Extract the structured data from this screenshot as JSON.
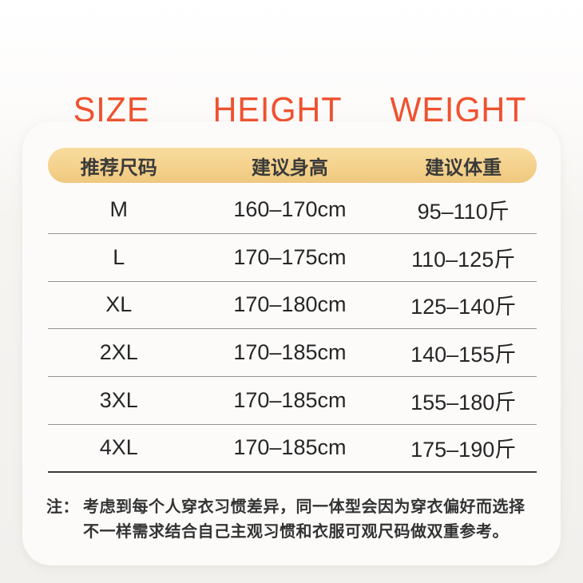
{
  "chart_data": {
    "type": "table",
    "columns_en": [
      "SIZE",
      "HEIGHT",
      "WEIGHT"
    ],
    "columns_cn": [
      "推荐尺码",
      "建议身高",
      "建议体重"
    ],
    "rows": [
      {
        "size": "M",
        "height": "160–170cm",
        "weight": "95–110斤"
      },
      {
        "size": "L",
        "height": "170–175cm",
        "weight": "110–125斤"
      },
      {
        "size": "XL",
        "height": "170–180cm",
        "weight": "125–140斤"
      },
      {
        "size": "2XL",
        "height": "170–185cm",
        "weight": "140–155斤"
      },
      {
        "size": "3XL",
        "height": "170–185cm",
        "weight": "155–180斤"
      },
      {
        "size": "4XL",
        "height": "170–185cm",
        "weight": "175–190斤"
      }
    ],
    "note_prefix": "注：",
    "note_text": "考虑到每个人穿衣习惯差异，同一体型会因为穿衣偏好而选择不一样需求结合自己主观习惯和衣服可观尺码做双重参考。",
    "layout_hints": {
      "header_style": "orange english labels above card",
      "banner_style": "yellow pill with chinese labels",
      "grid": "horizontal dividers only, last divider darker"
    }
  },
  "colors": {
    "accent_orange": "#F0512E",
    "banner_yellow": "#F4D18C",
    "card_background": "#FCFBFA",
    "page_background": "#F2F0ED",
    "divider_gray": "#939393",
    "divider_dark": "#3B3B3B",
    "text_dark": "#262626"
  }
}
